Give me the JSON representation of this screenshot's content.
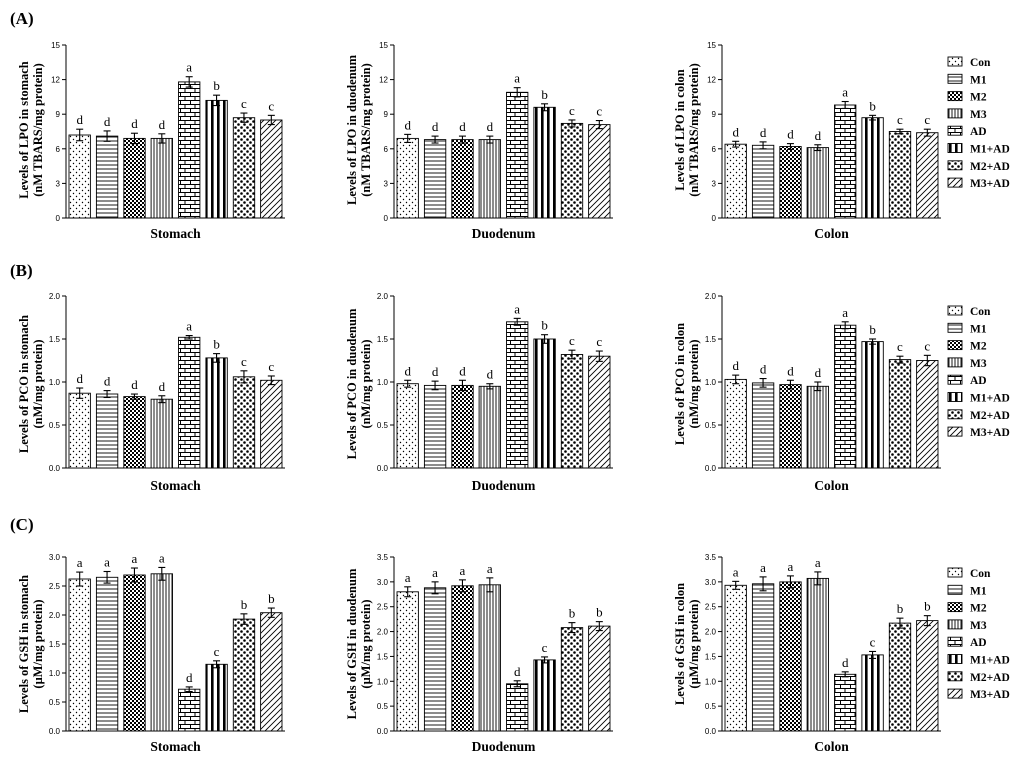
{
  "figure": {
    "panel_labels": [
      "(A)",
      "(B)",
      "(C)"
    ]
  },
  "legend": {
    "groups": [
      "Con",
      "M1",
      "M2",
      "M3",
      "AD",
      "M1+AD",
      "M2+AD",
      "M3+AD"
    ]
  },
  "chart_data": [
    {
      "type": "bar",
      "panel": "(A)",
      "categories": [
        "Con",
        "M1",
        "M2",
        "M3",
        "AD",
        "M1+AD",
        "M2+AD",
        "M3+AD"
      ],
      "values": [
        7.2,
        7.1,
        6.9,
        6.9,
        11.8,
        10.2,
        8.7,
        8.5
      ],
      "errors": [
        0.5,
        0.45,
        0.45,
        0.4,
        0.45,
        0.45,
        0.4,
        0.4
      ],
      "labels": [
        "d",
        "d",
        "d",
        "d",
        "a",
        "b",
        "c",
        "c"
      ],
      "xlabel": "Stomach",
      "ylabel": [
        "Levels of LPO in stomach",
        "(nM TBARS/mg protein)"
      ],
      "ylim": [
        0,
        15
      ],
      "yticks": [
        "0",
        "3",
        "6",
        "9",
        "12",
        "15"
      ]
    },
    {
      "type": "bar",
      "panel": "(A)",
      "categories": [
        "Con",
        "M1",
        "M2",
        "M3",
        "AD",
        "M1+AD",
        "M2+AD",
        "M3+AD"
      ],
      "values": [
        6.9,
        6.8,
        6.8,
        6.8,
        10.9,
        9.6,
        8.2,
        8.1
      ],
      "errors": [
        0.35,
        0.3,
        0.3,
        0.3,
        0.4,
        0.3,
        0.3,
        0.35
      ],
      "labels": [
        "d",
        "d",
        "d",
        "d",
        "a",
        "b",
        "c",
        "c"
      ],
      "xlabel": "Duodenum",
      "ylabel": [
        "Levels of LPO in duodenum",
        "(nM TBARS/mg protein)"
      ],
      "ylim": [
        0,
        15
      ],
      "yticks": [
        "0",
        "3",
        "6",
        "9",
        "12",
        "15"
      ]
    },
    {
      "type": "bar",
      "panel": "(A)",
      "categories": [
        "Con",
        "M1",
        "M2",
        "M3",
        "AD",
        "M1+AD",
        "M2+AD",
        "M3+AD"
      ],
      "values": [
        6.4,
        6.3,
        6.2,
        6.1,
        9.8,
        8.7,
        7.5,
        7.4
      ],
      "errors": [
        0.25,
        0.3,
        0.25,
        0.25,
        0.3,
        0.2,
        0.2,
        0.3
      ],
      "labels": [
        "d",
        "d",
        "d",
        "d",
        "a",
        "b",
        "c",
        "c"
      ],
      "xlabel": "Colon",
      "ylabel": [
        "Levels of LPO in colon",
        "(nM TBARS/mg protein)"
      ],
      "ylim": [
        0,
        15
      ],
      "yticks": [
        "0",
        "3",
        "6",
        "9",
        "12",
        "15"
      ]
    },
    {
      "type": "bar",
      "panel": "(B)",
      "categories": [
        "Con",
        "M1",
        "M2",
        "M3",
        "AD",
        "M1+AD",
        "M2+AD",
        "M3+AD"
      ],
      "values": [
        0.87,
        0.86,
        0.83,
        0.8,
        1.52,
        1.28,
        1.06,
        1.02
      ],
      "errors": [
        0.06,
        0.04,
        0.03,
        0.04,
        0.02,
        0.05,
        0.07,
        0.05
      ],
      "labels": [
        "d",
        "d",
        "d",
        "d",
        "a",
        "b",
        "c",
        "c"
      ],
      "xlabel": "Stomach",
      "ylabel": [
        "Levels of PCO in stomach",
        "(nM/mg protein)"
      ],
      "ylim": [
        0,
        2
      ],
      "yticks": [
        "0.0",
        "0.5",
        "1.0",
        "1.5",
        "2.0"
      ]
    },
    {
      "type": "bar",
      "panel": "(B)",
      "categories": [
        "Con",
        "M1",
        "M2",
        "M3",
        "AD",
        "M1+AD",
        "M2+AD",
        "M3+AD"
      ],
      "values": [
        0.98,
        0.96,
        0.96,
        0.95,
        1.7,
        1.5,
        1.32,
        1.3
      ],
      "errors": [
        0.04,
        0.05,
        0.06,
        0.03,
        0.04,
        0.05,
        0.05,
        0.06
      ],
      "labels": [
        "d",
        "d",
        "d",
        "d",
        "a",
        "b",
        "c",
        "c"
      ],
      "xlabel": "Duodenum",
      "ylabel": [
        "Levels of PCO in duodenum",
        "(nM/mg protein)"
      ],
      "ylim": [
        0,
        2
      ],
      "yticks": [
        "0.0",
        "0.5",
        "1.0",
        "1.5",
        "2.0"
      ]
    },
    {
      "type": "bar",
      "panel": "(B)",
      "categories": [
        "Con",
        "M1",
        "M2",
        "M3",
        "AD",
        "M1+AD",
        "M2+AD",
        "M3+AD"
      ],
      "values": [
        1.03,
        0.99,
        0.97,
        0.95,
        1.66,
        1.47,
        1.26,
        1.25
      ],
      "errors": [
        0.05,
        0.05,
        0.05,
        0.05,
        0.04,
        0.03,
        0.04,
        0.06
      ],
      "labels": [
        "d",
        "d",
        "d",
        "d",
        "a",
        "b",
        "c",
        "c"
      ],
      "xlabel": "Colon",
      "ylabel": [
        "Levels of PCO in colon",
        "(nM/mg protein)"
      ],
      "ylim": [
        0,
        2
      ],
      "yticks": [
        "0.0",
        "0.5",
        "1.0",
        "1.5",
        "2.0"
      ]
    },
    {
      "type": "bar",
      "panel": "(C)",
      "categories": [
        "Con",
        "M1",
        "M2",
        "M3",
        "AD",
        "M1+AD",
        "M2+AD",
        "M3+AD"
      ],
      "values": [
        2.62,
        2.65,
        2.69,
        2.71,
        0.72,
        1.15,
        1.93,
        2.04
      ],
      "errors": [
        0.12,
        0.1,
        0.12,
        0.11,
        0.04,
        0.06,
        0.09,
        0.08
      ],
      "labels": [
        "a",
        "a",
        "a",
        "a",
        "d",
        "c",
        "b",
        "b"
      ],
      "xlabel": "Stomach",
      "ylabel": [
        "Levels of GSH in stomach",
        "(μM/mg protein)"
      ],
      "ylim": [
        0,
        3
      ],
      "yticks": [
        "0.0",
        "0.5",
        "1.0",
        "1.5",
        "2.0",
        "2.5",
        "3.0"
      ]
    },
    {
      "type": "bar",
      "panel": "(C)",
      "categories": [
        "Con",
        "M1",
        "M2",
        "M3",
        "AD",
        "M1+AD",
        "M2+AD",
        "M3+AD"
      ],
      "values": [
        2.8,
        2.88,
        2.92,
        2.94,
        0.95,
        1.43,
        2.08,
        2.11
      ],
      "errors": [
        0.1,
        0.12,
        0.12,
        0.14,
        0.06,
        0.06,
        0.1,
        0.09
      ],
      "labels": [
        "a",
        "a",
        "a",
        "a",
        "d",
        "c",
        "b",
        "b"
      ],
      "xlabel": "Duodenum",
      "ylabel": [
        "Levels of GSH in duodenum",
        "(μM/mg protein)"
      ],
      "ylim": [
        0,
        3.5
      ],
      "yticks": [
        "0.0",
        "0.5",
        "1.0",
        "1.5",
        "2.0",
        "2.5",
        "3.0",
        "3.5"
      ]
    },
    {
      "type": "bar",
      "panel": "(C)",
      "categories": [
        "Con",
        "M1",
        "M2",
        "M3",
        "AD",
        "M1+AD",
        "M2+AD",
        "M3+AD"
      ],
      "values": [
        2.93,
        2.96,
        3.0,
        3.07,
        1.14,
        1.53,
        2.17,
        2.22
      ],
      "errors": [
        0.08,
        0.14,
        0.12,
        0.13,
        0.05,
        0.07,
        0.1,
        0.1
      ],
      "labels": [
        "a",
        "a",
        "a",
        "a",
        "d",
        "c",
        "b",
        "b"
      ],
      "xlabel": "Colon",
      "ylabel": [
        "Levels of GSH in colon",
        "(μM/mg protein)"
      ],
      "ylim": [
        0,
        3.5
      ],
      "yticks": [
        "0.0",
        "0.5",
        "1.0",
        "1.5",
        "2.0",
        "2.5",
        "3.0",
        "3.5"
      ]
    }
  ]
}
